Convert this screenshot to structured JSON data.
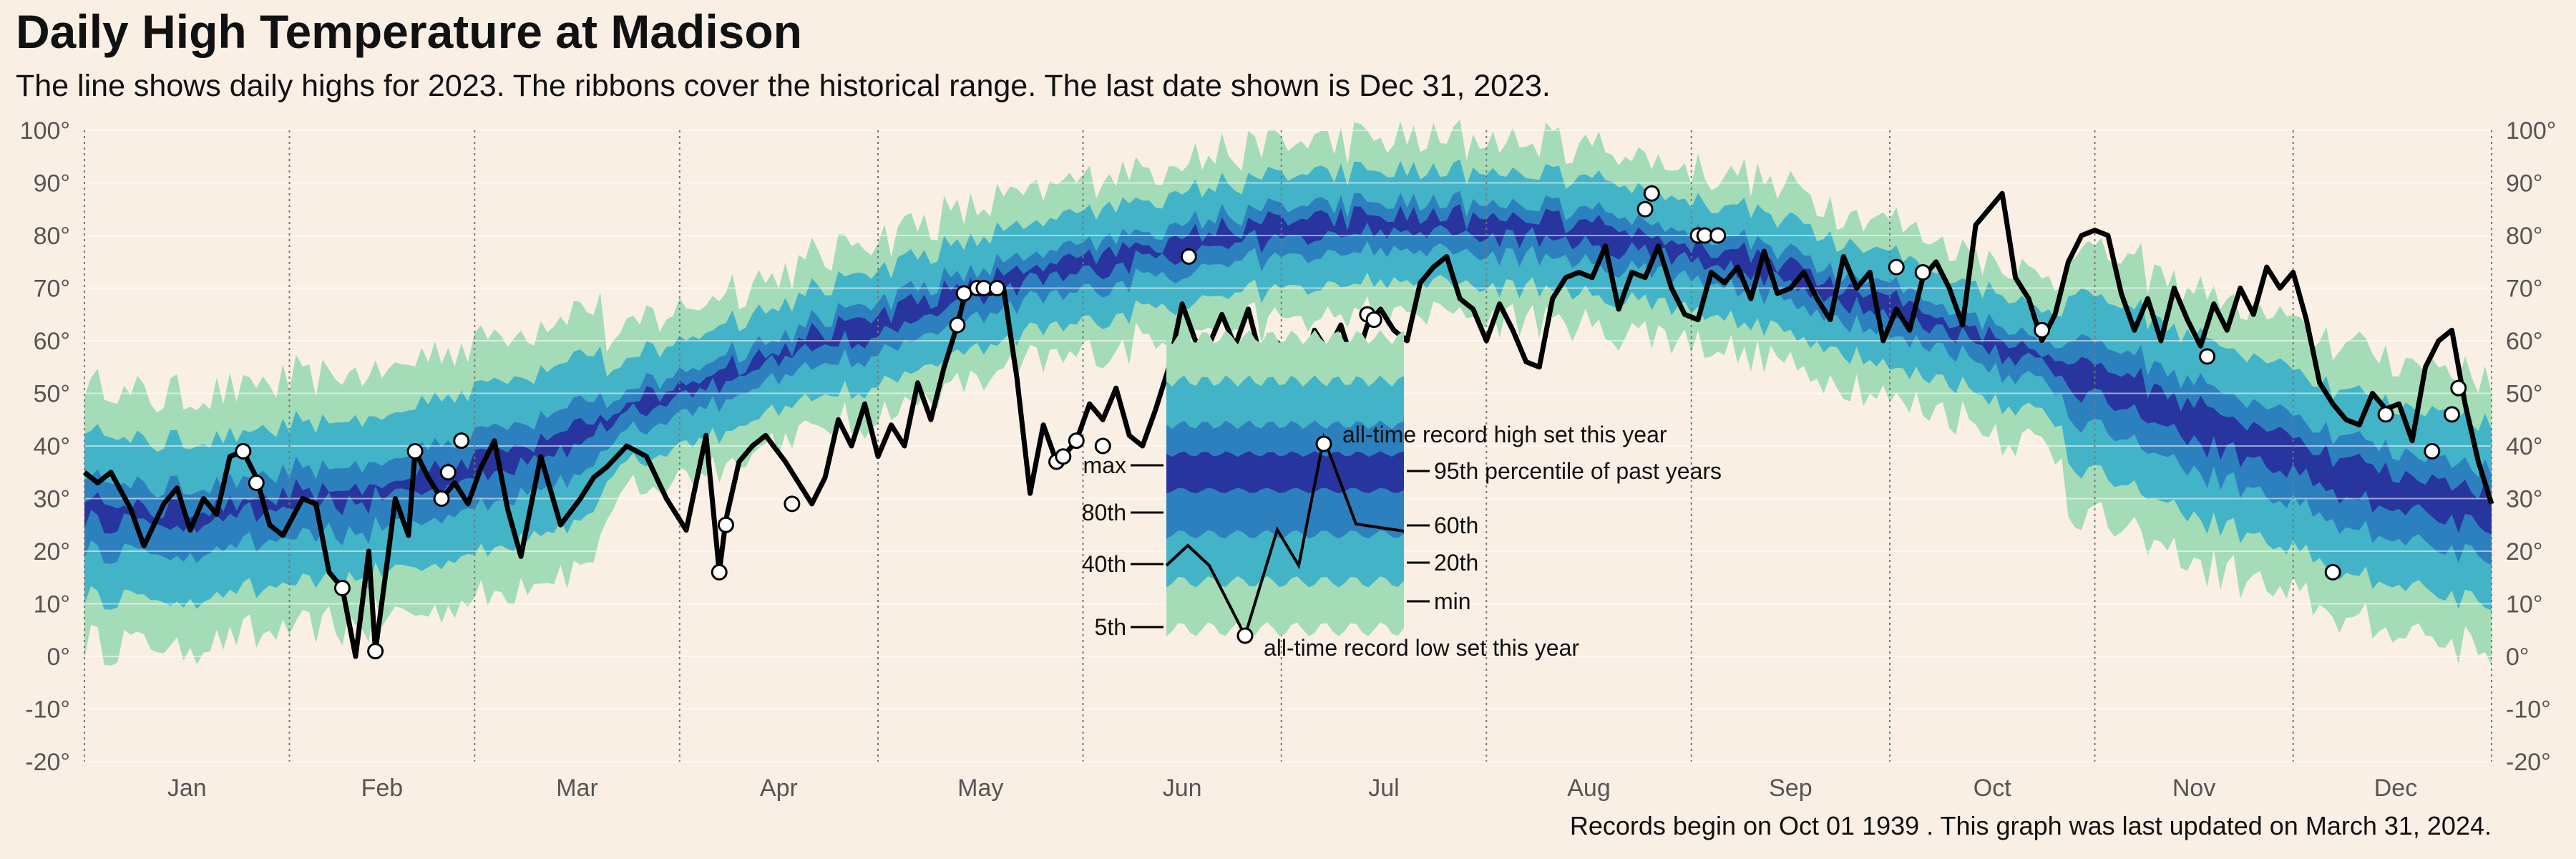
{
  "title": "Daily High Temperature at Madison",
  "subtitle": "The line shows daily highs for 2023. The ribbons cover the historical range. The last date shown is Dec 31, 2023.",
  "caption": "Records begin on Oct 01 1939 . This graph was last updated on March 31, 2024.",
  "colors": {
    "background": "#faefe5",
    "band_outer": "#a3dcb6",
    "band_p5_p95": "#43b3c7",
    "band_p20_p80": "#2d80be",
    "band_p40_p60": "#28359e",
    "line": "#000000",
    "gridline": "#ffffff",
    "month_divider": "#777777"
  },
  "chart_data": {
    "type": "line",
    "xlim": [
      1,
      365
    ],
    "ylim": [
      -20,
      100
    ],
    "grid": true,
    "y_ticks": [
      "-20°",
      "-10°",
      "0°",
      "10°",
      "20°",
      "30°",
      "40°",
      "50°",
      "60°",
      "70°",
      "80°",
      "90°",
      "100°"
    ],
    "months": [
      "Jan",
      "Feb",
      "Mar",
      "Apr",
      "May",
      "Jun",
      "Jul",
      "Aug",
      "Sep",
      "Oct",
      "Nov",
      "Dec"
    ],
    "normal_curve_knots": [
      [
        1,
        28
      ],
      [
        15,
        26
      ],
      [
        30,
        29
      ],
      [
        45,
        31
      ],
      [
        60,
        36
      ],
      [
        75,
        42
      ],
      [
        90,
        50
      ],
      [
        105,
        57
      ],
      [
        120,
        63
      ],
      [
        135,
        69
      ],
      [
        150,
        74
      ],
      [
        165,
        78
      ],
      [
        180,
        81
      ],
      [
        195,
        82
      ],
      [
        210,
        82
      ],
      [
        225,
        81
      ],
      [
        240,
        78
      ],
      [
        255,
        74
      ],
      [
        270,
        68
      ],
      [
        285,
        62
      ],
      [
        300,
        55
      ],
      [
        315,
        47
      ],
      [
        330,
        40
      ],
      [
        345,
        33
      ],
      [
        365,
        28
      ]
    ],
    "band_offsets": {
      "max": 16,
      "p95": 10,
      "p80": 4,
      "p60": 1.5,
      "p40": -1.5,
      "p20": -5,
      "p5": -11,
      "min": -17
    },
    "daily_highs_knots": [
      [
        1,
        35
      ],
      [
        3,
        33
      ],
      [
        5,
        35
      ],
      [
        8,
        28
      ],
      [
        10,
        21
      ],
      [
        13,
        29
      ],
      [
        15,
        32
      ],
      [
        17,
        24
      ],
      [
        19,
        30
      ],
      [
        21,
        27
      ],
      [
        23,
        38
      ],
      [
        25,
        39
      ],
      [
        27,
        34
      ],
      [
        29,
        25
      ],
      [
        31,
        23
      ],
      [
        34,
        30
      ],
      [
        36,
        29
      ],
      [
        38,
        16
      ],
      [
        40,
        13
      ],
      [
        42,
        0
      ],
      [
        44,
        20
      ],
      [
        45,
        1
      ],
      [
        47,
        20
      ],
      [
        48,
        30
      ],
      [
        50,
        23
      ],
      [
        51,
        39
      ],
      [
        53,
        34
      ],
      [
        55,
        30
      ],
      [
        57,
        33
      ],
      [
        59,
        29
      ],
      [
        61,
        36
      ],
      [
        63,
        41
      ],
      [
        65,
        28
      ],
      [
        67,
        19
      ],
      [
        70,
        38
      ],
      [
        73,
        25
      ],
      [
        76,
        30
      ],
      [
        78,
        34
      ],
      [
        80,
        36
      ],
      [
        83,
        40
      ],
      [
        86,
        38
      ],
      [
        89,
        30
      ],
      [
        92,
        24
      ],
      [
        95,
        42
      ],
      [
        97,
        16
      ],
      [
        98,
        26
      ],
      [
        100,
        37
      ],
      [
        102,
        40
      ],
      [
        104,
        42
      ],
      [
        107,
        37
      ],
      [
        109,
        33
      ],
      [
        111,
        29
      ],
      [
        113,
        34
      ],
      [
        115,
        45
      ],
      [
        117,
        40
      ],
      [
        119,
        48
      ],
      [
        121,
        38
      ],
      [
        123,
        44
      ],
      [
        125,
        40
      ],
      [
        127,
        52
      ],
      [
        129,
        45
      ],
      [
        131,
        55
      ],
      [
        133,
        63
      ],
      [
        134,
        68
      ],
      [
        136,
        70
      ],
      [
        138,
        69
      ],
      [
        140,
        70
      ],
      [
        142,
        53
      ],
      [
        144,
        31
      ],
      [
        146,
        44
      ],
      [
        148,
        37
      ],
      [
        149,
        38
      ],
      [
        151,
        41
      ],
      [
        153,
        48
      ],
      [
        155,
        45
      ],
      [
        157,
        51
      ],
      [
        159,
        42
      ],
      [
        161,
        40
      ],
      [
        163,
        47
      ],
      [
        165,
        55
      ],
      [
        167,
        67
      ],
      [
        169,
        60
      ],
      [
        171,
        59
      ],
      [
        173,
        65
      ],
      [
        175,
        59
      ],
      [
        177,
        66
      ],
      [
        179,
        56
      ],
      [
        181,
        60
      ],
      [
        183,
        58
      ],
      [
        185,
        53
      ],
      [
        187,
        62
      ],
      [
        189,
        58
      ],
      [
        191,
        63
      ],
      [
        193,
        55
      ],
      [
        195,
        63
      ],
      [
        197,
        66
      ],
      [
        199,
        62
      ],
      [
        201,
        60
      ],
      [
        203,
        71
      ],
      [
        205,
        74
      ],
      [
        207,
        76
      ],
      [
        209,
        68
      ],
      [
        211,
        66
      ],
      [
        213,
        60
      ],
      [
        215,
        67
      ],
      [
        217,
        62
      ],
      [
        219,
        56
      ],
      [
        221,
        55
      ],
      [
        223,
        68
      ],
      [
        225,
        72
      ],
      [
        227,
        73
      ],
      [
        229,
        72
      ],
      [
        231,
        78
      ],
      [
        233,
        66
      ],
      [
        235,
        73
      ],
      [
        237,
        72
      ],
      [
        239,
        78
      ],
      [
        241,
        70
      ],
      [
        243,
        65
      ],
      [
        245,
        64
      ],
      [
        247,
        73
      ],
      [
        249,
        71
      ],
      [
        251,
        74
      ],
      [
        253,
        68
      ],
      [
        255,
        77
      ],
      [
        257,
        69
      ],
      [
        259,
        70
      ],
      [
        261,
        73
      ],
      [
        263,
        68
      ],
      [
        265,
        64
      ],
      [
        267,
        76
      ],
      [
        269,
        70
      ],
      [
        271,
        73
      ],
      [
        273,
        60
      ],
      [
        275,
        66
      ],
      [
        277,
        62
      ],
      [
        279,
        72
      ],
      [
        281,
        75
      ],
      [
        283,
        70
      ],
      [
        285,
        63
      ],
      [
        287,
        82
      ],
      [
        289,
        85
      ],
      [
        291,
        88
      ],
      [
        293,
        72
      ],
      [
        295,
        68
      ],
      [
        297,
        60
      ],
      [
        299,
        65
      ],
      [
        301,
        75
      ],
      [
        303,
        80
      ],
      [
        305,
        81
      ],
      [
        307,
        80
      ],
      [
        309,
        69
      ],
      [
        311,
        62
      ],
      [
        313,
        68
      ],
      [
        315,
        60
      ],
      [
        317,
        70
      ],
      [
        319,
        64
      ],
      [
        321,
        59
      ],
      [
        323,
        67
      ],
      [
        325,
        62
      ],
      [
        327,
        70
      ],
      [
        329,
        65
      ],
      [
        331,
        74
      ],
      [
        333,
        70
      ],
      [
        335,
        73
      ],
      [
        337,
        64
      ],
      [
        339,
        52
      ],
      [
        341,
        48
      ],
      [
        343,
        45
      ],
      [
        345,
        44
      ],
      [
        347,
        50
      ],
      [
        349,
        47
      ],
      [
        351,
        48
      ],
      [
        353,
        41
      ],
      [
        355,
        55
      ],
      [
        357,
        60
      ],
      [
        359,
        62
      ],
      [
        361,
        48
      ],
      [
        363,
        37
      ],
      [
        365,
        29
      ]
    ],
    "records": [
      [
        25,
        39
      ],
      [
        27,
        33
      ],
      [
        40,
        13
      ],
      [
        45,
        1
      ],
      [
        51,
        39
      ],
      [
        55,
        30
      ],
      [
        56,
        35
      ],
      [
        58,
        41
      ],
      [
        97,
        16
      ],
      [
        98,
        25
      ],
      [
        108,
        29
      ],
      [
        133,
        63
      ],
      [
        134,
        69
      ],
      [
        136,
        70
      ],
      [
        137,
        70
      ],
      [
        139,
        70
      ],
      [
        148,
        37
      ],
      [
        149,
        38
      ],
      [
        151,
        41
      ],
      [
        155,
        40
      ],
      [
        168,
        76
      ],
      [
        183,
        58
      ],
      [
        184,
        54
      ],
      [
        195,
        65
      ],
      [
        196,
        64
      ],
      [
        237,
        85
      ],
      [
        238,
        88
      ],
      [
        245,
        80
      ],
      [
        246,
        80
      ],
      [
        248,
        80
      ],
      [
        275,
        74
      ],
      [
        279,
        73
      ],
      [
        297,
        62
      ],
      [
        322,
        57
      ],
      [
        341,
        16
      ],
      [
        349,
        46
      ],
      [
        356,
        39
      ],
      [
        359,
        46
      ],
      [
        360,
        51
      ]
    ],
    "legend": {
      "band_labels_left": [
        "max",
        "80th",
        "40th",
        "5th"
      ],
      "band_labels_right": [
        "95th percentile of past years",
        "60th",
        "20th",
        "min"
      ],
      "record_high_label": "all-time record high set this year",
      "record_low_label": "all-time record low set this year"
    }
  }
}
